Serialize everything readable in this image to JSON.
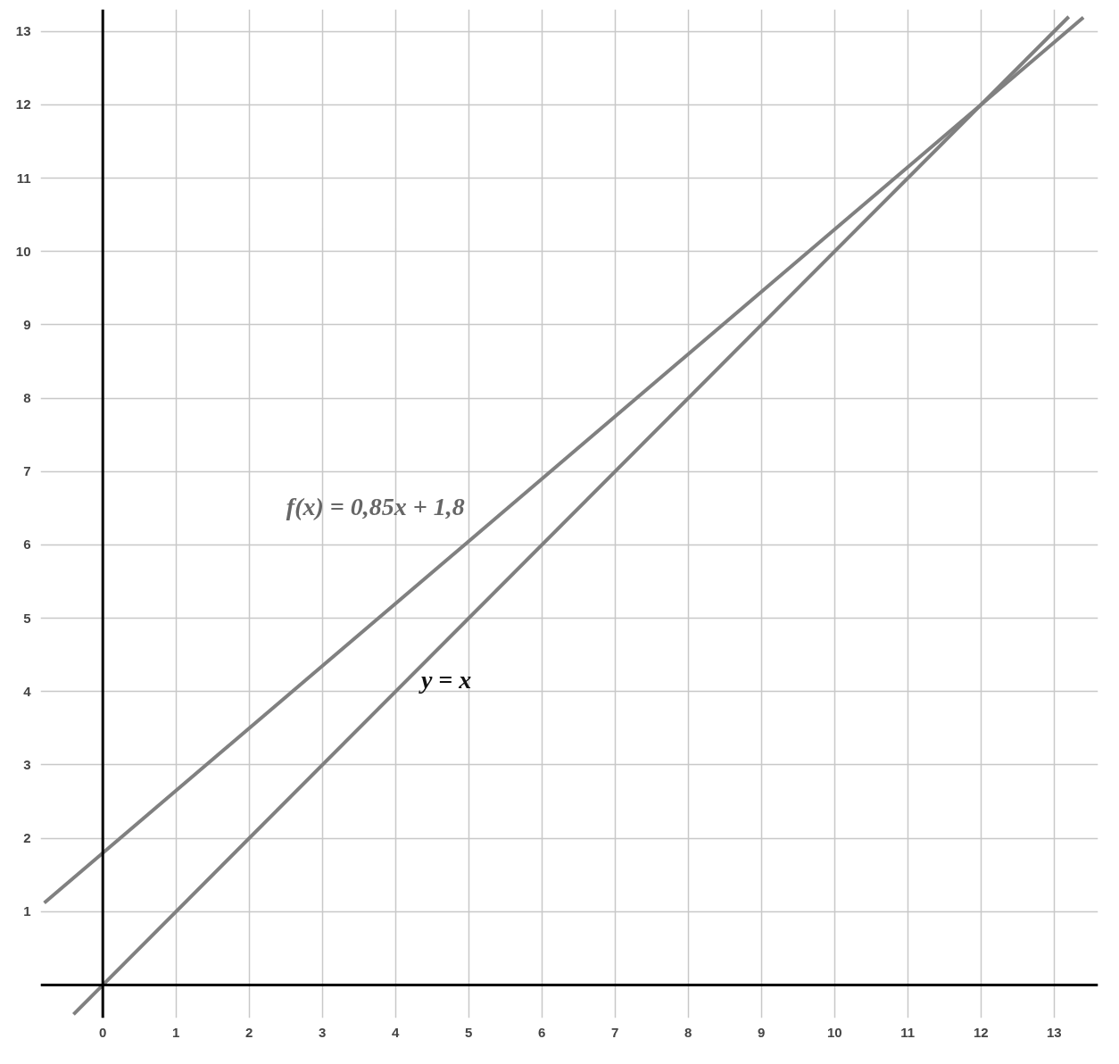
{
  "chart_data": {
    "type": "line",
    "xlim": [
      -0.85,
      13.6
    ],
    "ylim": [
      -0.45,
      13.3
    ],
    "xticks": [
      0,
      1,
      2,
      3,
      4,
      5,
      6,
      7,
      8,
      9,
      10,
      11,
      12,
      13
    ],
    "yticks": [
      {
        "value": 0,
        "label": null
      },
      1,
      2,
      3,
      4,
      5,
      6,
      7,
      8,
      9,
      10,
      11,
      12,
      13
    ],
    "grid": true,
    "marker": "none",
    "line_style": "solid",
    "series": [
      {
        "name": "f(x) = 0,85x + 1,8",
        "color": "#808080",
        "x": [
          -0.8,
          13.4
        ],
        "values": [
          1.12,
          13.19
        ]
      },
      {
        "name": "y = x",
        "color": "#808080",
        "x": [
          -0.4,
          13.2
        ],
        "values": [
          -0.4,
          13.2
        ]
      }
    ]
  }
}
